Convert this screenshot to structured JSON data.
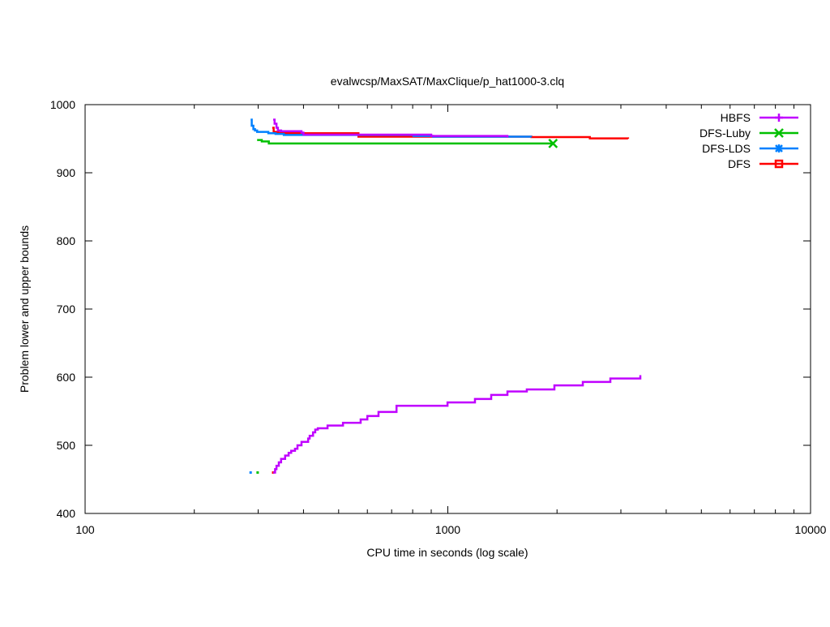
{
  "chart_data": {
    "type": "line",
    "title": "evalwcsp/MaxSAT/MaxClique/p_hat1000-3.clq",
    "xlabel": "CPU time in seconds (log scale)",
    "ylabel": "Problem lower and upper bounds",
    "xscale": "log",
    "xlim": [
      100,
      10000
    ],
    "ylim": [
      400,
      1000
    ],
    "xticks": [
      100,
      1000,
      10000
    ],
    "xtick_labels": [
      "100",
      "1000",
      "10000"
    ],
    "yticks": [
      400,
      500,
      600,
      700,
      800,
      900,
      1000
    ],
    "ytick_labels": [
      "400",
      "500",
      "600",
      "700",
      "800",
      "900",
      "1000"
    ],
    "grid": false,
    "legend_position": "top-right",
    "series": [
      {
        "name": "HBFS",
        "color": "#c000ff",
        "marker": "plus",
        "upper": {
          "x": [
            330,
            333,
            337,
            340,
            347,
            395,
            400,
            900,
            1460
          ],
          "y": [
            978,
            972,
            966,
            962,
            961,
            959,
            956,
            954,
            952
          ]
        },
        "lower": {
          "x": [
            330,
            334,
            337,
            342,
            347,
            356,
            364,
            370,
            379,
            385,
            395,
            412,
            416,
            425,
            431,
            438,
            466,
            514,
            575,
            600,
            644,
            722,
            998,
            1188,
            1317,
            1460,
            1651,
            1967,
            2356,
            2806,
            3394
          ],
          "y": [
            460,
            465,
            470,
            475,
            480,
            485,
            489,
            492,
            495,
            500,
            505,
            510,
            514,
            519,
            523,
            525,
            529,
            533,
            538,
            543,
            549,
            558,
            563,
            568,
            574,
            579,
            582,
            588,
            593,
            598,
            603
          ]
        }
      },
      {
        "name": "DFS-Luby",
        "color": "#00c000",
        "marker": "x",
        "upper": {
          "x": [
            298,
            307,
            321,
            1950
          ],
          "y": [
            948,
            946,
            943,
            943
          ]
        },
        "lower": {
          "x": [
            299
          ],
          "y": [
            460
          ]
        }
      },
      {
        "name": "DFS-LDS",
        "color": "#0080ff",
        "marker": "star",
        "upper": {
          "x": [
            286,
            288,
            291,
            294,
            298,
            320,
            335,
            353,
            804,
            910,
            1695
          ],
          "y": [
            978,
            969,
            964,
            962,
            960,
            958,
            957,
            955.5,
            954,
            953,
            952
          ]
        },
        "lower": {
          "x": [
            286
          ],
          "y": [
            460
          ]
        }
      },
      {
        "name": "DFS",
        "color": "#ff0000",
        "marker": "square",
        "upper": {
          "x": [
            328,
            331,
            340,
            350,
            567,
            1700,
            2464,
            3140
          ],
          "y": [
            966,
            960,
            959,
            958,
            953,
            952.4,
            950.4,
            950
          ]
        },
        "lower": {
          "x": [
            330
          ],
          "y": [
            460
          ]
        }
      }
    ]
  }
}
